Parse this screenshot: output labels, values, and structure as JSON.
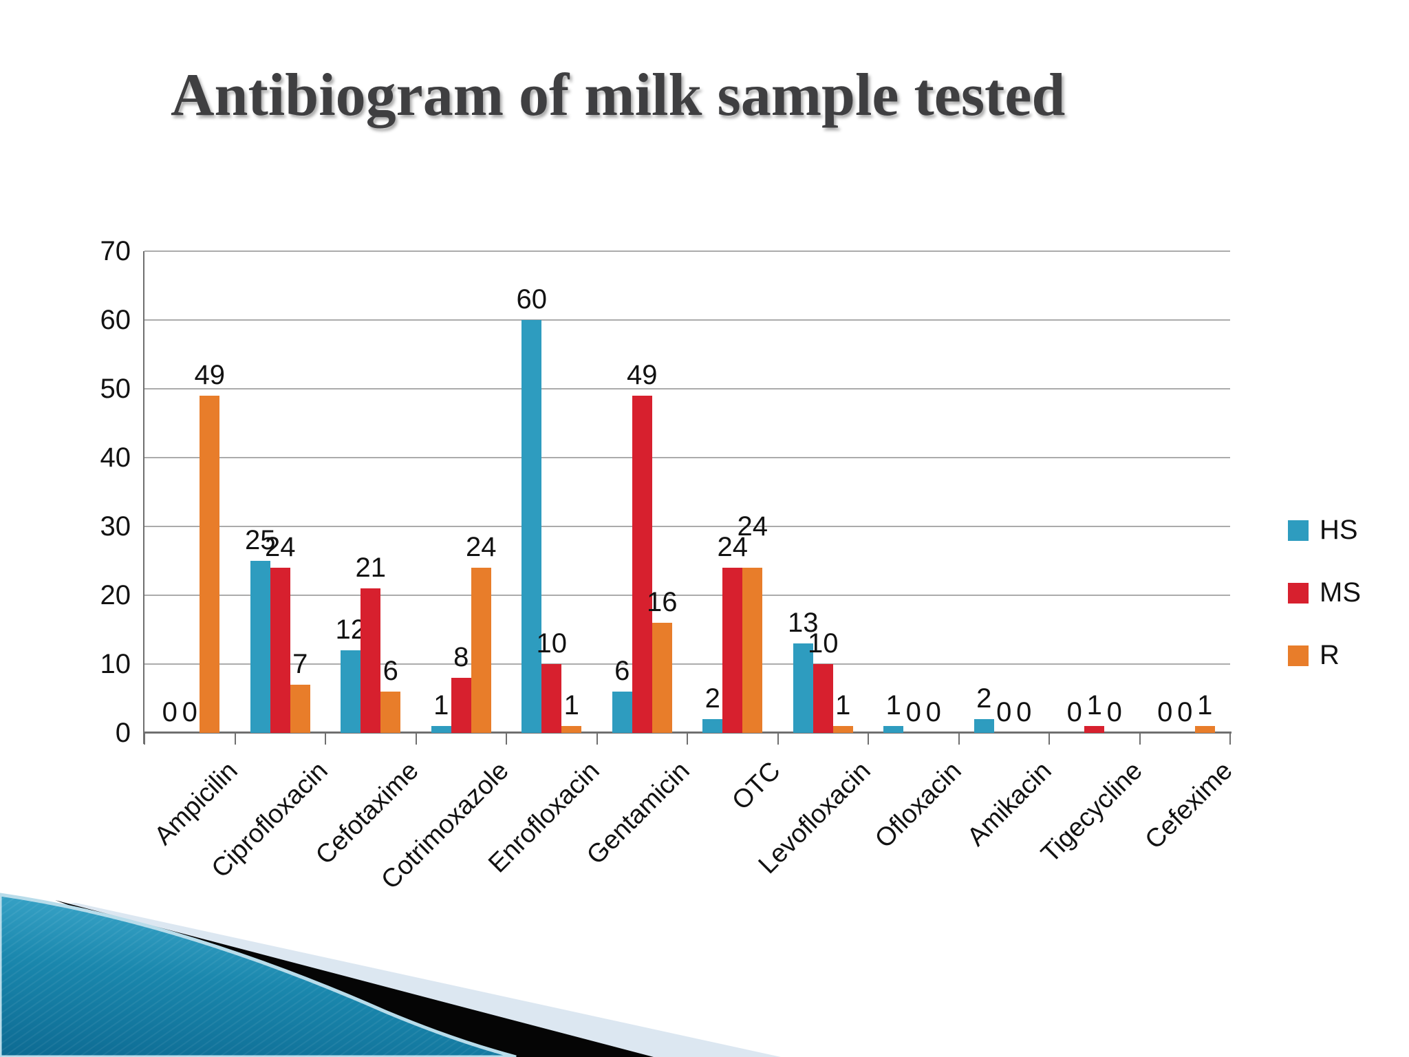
{
  "slide": {
    "title": "Antibiogram of milk sample tested"
  },
  "chart_data": {
    "type": "bar",
    "title": "Antibiogram of milk sample tested",
    "categories": [
      "Ampicilin",
      "Ciprofloxacin",
      "Cefotaxime",
      "Cotrimoxazole",
      "Enrofloxacin",
      "Gentamicin",
      "OTC",
      "Levofloxacin",
      "Ofloxacin",
      "Amikacin",
      "Tigecycline",
      "Cefexime"
    ],
    "series": [
      {
        "name": "HS",
        "color": "#2E9CBF",
        "values": [
          0,
          25,
          12,
          1,
          60,
          6,
          2,
          13,
          1,
          2,
          0,
          0
        ]
      },
      {
        "name": "MS",
        "color": "#D7202E",
        "values": [
          0,
          24,
          21,
          8,
          10,
          49,
          24,
          10,
          0,
          0,
          1,
          0
        ]
      },
      {
        "name": "R",
        "color": "#E87D2A",
        "values": [
          49,
          7,
          6,
          24,
          1,
          16,
          24,
          1,
          0,
          0,
          0,
          1
        ]
      }
    ],
    "ylim": [
      0,
      70
    ],
    "ytick_step": 10,
    "yticks": [
      0,
      10,
      20,
      30,
      40,
      50,
      60,
      70
    ],
    "xlabel": "",
    "ylabel": "",
    "grid": true,
    "legend_position": "right",
    "data_labels": true
  },
  "theme": {
    "background": "#ffffff",
    "title_color": "#3f3f41",
    "gridline_color": "#ababab",
    "axis_color": "#6f6f6f",
    "label_color": "#121212",
    "decor": {
      "teal_light": "#3fa9cc",
      "teal_mid": "#1a87ad",
      "teal_dark": "#0d6a92",
      "black_band": "#050505",
      "light_band": "#dce7f1",
      "edge_line": "#b8dcea"
    }
  }
}
